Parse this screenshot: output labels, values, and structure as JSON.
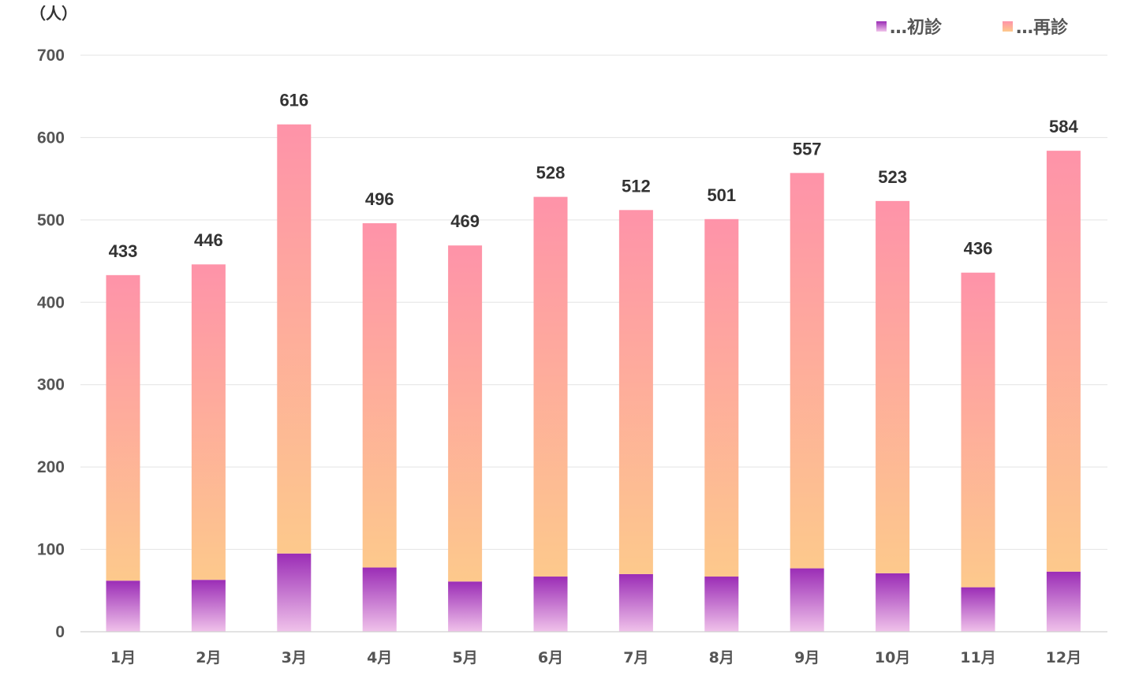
{
  "chart_data": {
    "type": "bar",
    "stacked": true,
    "y_unit": "（人）",
    "categories": [
      "1月",
      "2月",
      "3月",
      "4月",
      "5月",
      "6月",
      "7月",
      "8月",
      "9月",
      "10月",
      "11月",
      "12月"
    ],
    "series": [
      {
        "name": "…初診",
        "values": [
          62,
          63,
          95,
          78,
          61,
          67,
          70,
          67,
          77,
          71,
          54,
          73
        ]
      },
      {
        "name": "…再診",
        "values": [
          371,
          383,
          521,
          418,
          408,
          461,
          442,
          434,
          480,
          452,
          382,
          511
        ]
      }
    ],
    "totals": [
      433,
      446,
      616,
      496,
      469,
      528,
      512,
      501,
      557,
      523,
      436,
      584
    ],
    "ylim": [
      0,
      700
    ],
    "yticks": [
      0,
      100,
      200,
      300,
      400,
      500,
      600,
      700
    ],
    "grid": true,
    "legend_position": "top-right",
    "colors": {
      "first_visit_top": "#9b2db6",
      "first_visit_bottom": "#f0c2ea",
      "revisit_top": "#fe93a9",
      "revisit_bottom": "#fdc98c"
    }
  }
}
